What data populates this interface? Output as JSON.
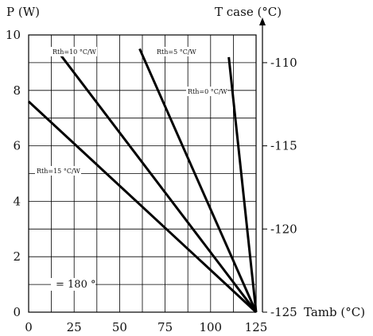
{
  "chart_data": {
    "type": "line",
    "left_axis": {
      "label": "P (W)",
      "ylim": [
        0,
        10
      ],
      "ticks": [
        "0",
        "2",
        "4",
        "6",
        "8",
        "10"
      ]
    },
    "x_axis": {
      "label": "Tamb (°C)",
      "xlim": [
        0,
        125
      ],
      "ticks": [
        "0",
        "25",
        "50",
        "75",
        "100",
        "125"
      ]
    },
    "right_axis": {
      "label": "T case (°C)",
      "ticks": [
        "-125",
        "-120",
        "-115",
        "-110"
      ]
    },
    "grid": true,
    "series": [
      {
        "name": "Rth=0 °C/W",
        "x": [
          110,
          125
        ],
        "y": [
          9.2,
          0
        ]
      },
      {
        "name": "Rth=5 °C/W",
        "x": [
          61,
          125
        ],
        "y": [
          9.5,
          0
        ]
      },
      {
        "name": "Rth=10 °C/W",
        "x": [
          15,
          125
        ],
        "y": [
          9.5,
          0
        ]
      },
      {
        "name": "Rth=15 °C/W",
        "x": [
          0,
          125
        ],
        "y": [
          7.6,
          0
        ]
      }
    ],
    "annotations": [
      {
        "text": "Rth=10 °C/W"
      },
      {
        "text": "Rth=5 °C/W"
      },
      {
        "text": "Rth=0 °C/W"
      },
      {
        "text": "Rth=15 °C/W"
      },
      {
        "text": "= 180 °"
      }
    ]
  }
}
